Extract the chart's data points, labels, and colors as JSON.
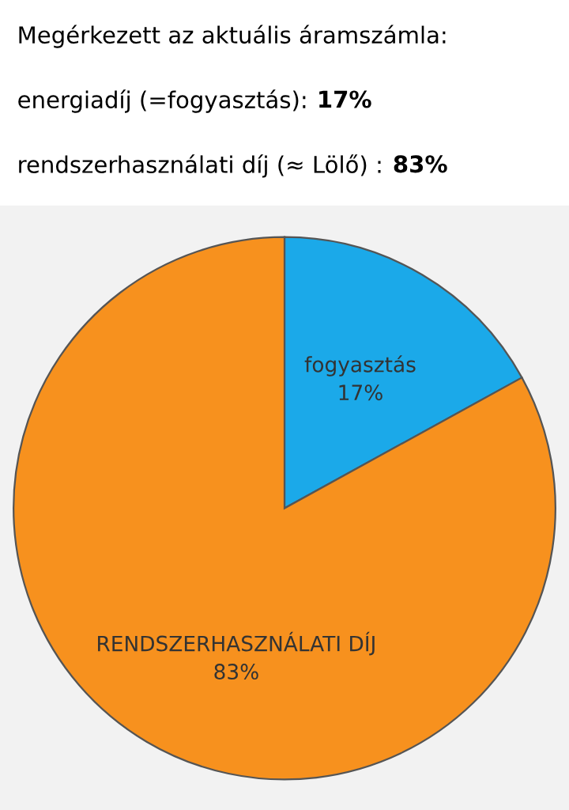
{
  "chart_data": {
    "type": "pie",
    "title": "Megérkezett az aktuális áramszámla:",
    "annotations": [
      "energiadíj (=fogyasztás): 17%",
      "rendszerhasználati díj (≈ Lölő) : 83%"
    ],
    "categories": [
      "fogyasztás",
      "RENDSZERHASZNÁLATI DÍJ"
    ],
    "values": [
      17,
      83
    ],
    "value_labels": [
      "17%",
      "83%"
    ],
    "colors": [
      "#1ba9e9",
      "#f7911e"
    ]
  }
}
